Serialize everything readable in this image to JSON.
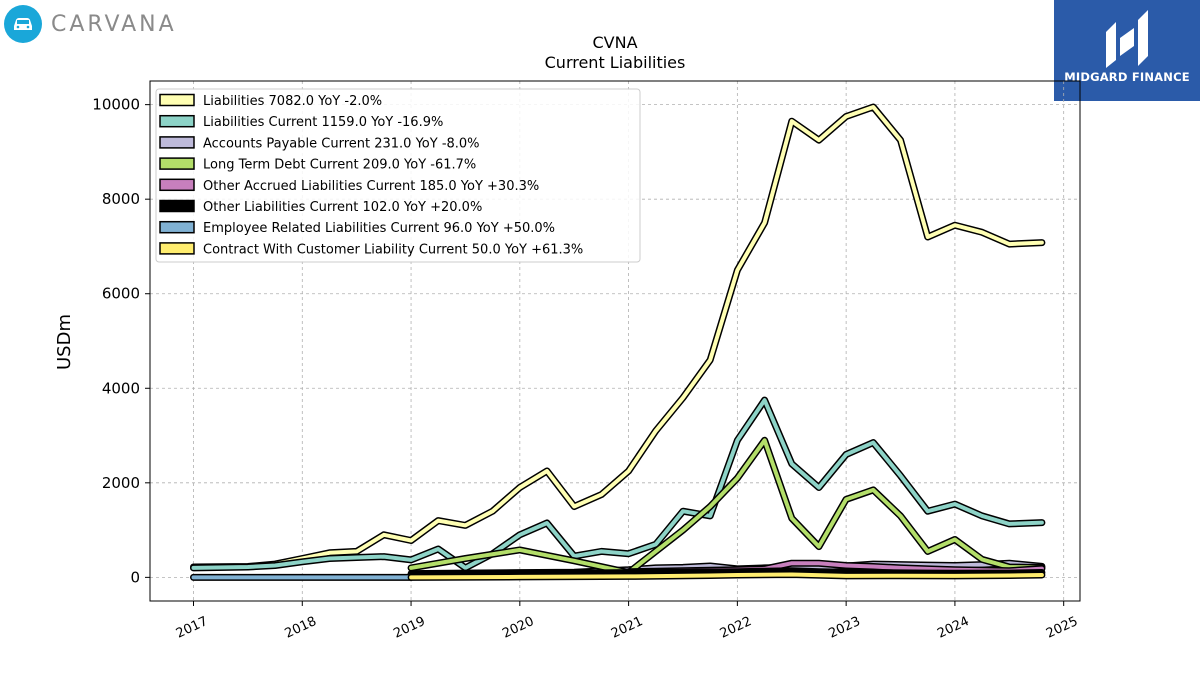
{
  "brand": {
    "name": "CARVANA",
    "icon": "car-icon",
    "color": "#1aa7d9"
  },
  "sponsor": {
    "name": "MIDGARD FINANCE",
    "icon": "midgard-logo-icon",
    "background": "#2b5ba9"
  },
  "chart_data": {
    "type": "line",
    "title": "CVNA",
    "subtitle": "Current  Liabilities",
    "xlabel": "",
    "ylabel": "USDm",
    "xlim": [
      2016.6,
      2025.15
    ],
    "ylim": [
      -500,
      10500
    ],
    "yticks": [
      0,
      2000,
      4000,
      6000,
      8000,
      10000
    ],
    "xticks": [
      "2017",
      "2018",
      "2019",
      "2020",
      "2021",
      "2022",
      "2023",
      "2024",
      "2025"
    ],
    "grid": true,
    "legend_position": "upper-left",
    "series": [
      {
        "name": "Liabilities  7082.0 YoY -2.0%",
        "color": "#ffffb3",
        "points": [
          [
            2017.0,
            220
          ],
          [
            2017.5,
            230
          ],
          [
            2017.75,
            280
          ],
          [
            2018.0,
            400
          ],
          [
            2018.25,
            520
          ],
          [
            2018.5,
            550
          ],
          [
            2018.75,
            900
          ],
          [
            2019.0,
            780
          ],
          [
            2019.25,
            1200
          ],
          [
            2019.5,
            1100
          ],
          [
            2019.75,
            1400
          ],
          [
            2020.0,
            1900
          ],
          [
            2020.25,
            2250
          ],
          [
            2020.5,
            1500
          ],
          [
            2020.75,
            1750
          ],
          [
            2021.0,
            2250
          ],
          [
            2021.25,
            3100
          ],
          [
            2021.5,
            3800
          ],
          [
            2021.75,
            4600
          ],
          [
            2022.0,
            6500
          ],
          [
            2022.25,
            7500
          ],
          [
            2022.5,
            9650
          ],
          [
            2022.75,
            9250
          ],
          [
            2023.0,
            9750
          ],
          [
            2023.25,
            9950
          ],
          [
            2023.5,
            9250
          ],
          [
            2023.75,
            7200
          ],
          [
            2024.0,
            7450
          ],
          [
            2024.25,
            7300
          ],
          [
            2024.5,
            7050
          ],
          [
            2024.8,
            7082
          ]
        ]
      },
      {
        "name": "Liabilities Current  1159.0 YoY -16.9%",
        "color": "#8dd3c7",
        "points": [
          [
            2017.0,
            200
          ],
          [
            2017.5,
            220
          ],
          [
            2017.75,
            250
          ],
          [
            2018.0,
            330
          ],
          [
            2018.25,
            400
          ],
          [
            2018.5,
            420
          ],
          [
            2018.75,
            440
          ],
          [
            2019.0,
            370
          ],
          [
            2019.25,
            600
          ],
          [
            2019.5,
            200
          ],
          [
            2019.75,
            500
          ],
          [
            2020.0,
            900
          ],
          [
            2020.25,
            1150
          ],
          [
            2020.5,
            450
          ],
          [
            2020.75,
            550
          ],
          [
            2021.0,
            500
          ],
          [
            2021.25,
            700
          ],
          [
            2021.5,
            1400
          ],
          [
            2021.75,
            1300
          ],
          [
            2022.0,
            2900
          ],
          [
            2022.25,
            3750
          ],
          [
            2022.5,
            2400
          ],
          [
            2022.75,
            1900
          ],
          [
            2023.0,
            2600
          ],
          [
            2023.25,
            2850
          ],
          [
            2023.5,
            2150
          ],
          [
            2023.75,
            1400
          ],
          [
            2024.0,
            1550
          ],
          [
            2024.25,
            1300
          ],
          [
            2024.5,
            1130
          ],
          [
            2024.8,
            1159
          ]
        ]
      },
      {
        "name": "Accounts Payable Current  231.0 YoY -8.0%",
        "color": "#bebada",
        "points": [
          [
            2019.0,
            80
          ],
          [
            2019.5,
            90
          ],
          [
            2020.0,
            100
          ],
          [
            2020.5,
            110
          ],
          [
            2021.0,
            160
          ],
          [
            2021.25,
            200
          ],
          [
            2021.5,
            210
          ],
          [
            2021.75,
            240
          ],
          [
            2022.0,
            180
          ],
          [
            2022.25,
            200
          ],
          [
            2022.5,
            210
          ],
          [
            2022.75,
            220
          ],
          [
            2023.0,
            240
          ],
          [
            2023.25,
            280
          ],
          [
            2023.5,
            270
          ],
          [
            2023.75,
            260
          ],
          [
            2024.0,
            250
          ],
          [
            2024.25,
            270
          ],
          [
            2024.5,
            300
          ],
          [
            2024.8,
            231
          ]
        ]
      },
      {
        "name": "Long Term Debt Current  209.0 YoY -61.7%",
        "color": "#b3de69",
        "points": [
          [
            2019.0,
            200
          ],
          [
            2019.5,
            400
          ],
          [
            2020.0,
            580
          ],
          [
            2020.5,
            350
          ],
          [
            2021.0,
            100
          ],
          [
            2021.5,
            1000
          ],
          [
            2021.75,
            1500
          ],
          [
            2022.0,
            2100
          ],
          [
            2022.25,
            2900
          ],
          [
            2022.5,
            1250
          ],
          [
            2022.75,
            650
          ],
          [
            2023.0,
            1650
          ],
          [
            2023.25,
            1850
          ],
          [
            2023.5,
            1300
          ],
          [
            2023.75,
            550
          ],
          [
            2024.0,
            800
          ],
          [
            2024.25,
            380
          ],
          [
            2024.5,
            220
          ],
          [
            2024.8,
            209
          ]
        ]
      },
      {
        "name": "Other Accrued Liabilities Current  185.0 YoY +30.3%",
        "color": "#c77fbd",
        "points": [
          [
            2021.0,
            120
          ],
          [
            2021.5,
            140
          ],
          [
            2022.0,
            160
          ],
          [
            2022.25,
            180
          ],
          [
            2022.5,
            300
          ],
          [
            2022.75,
            300
          ],
          [
            2023.0,
            250
          ],
          [
            2023.25,
            230
          ],
          [
            2023.5,
            200
          ],
          [
            2023.75,
            180
          ],
          [
            2024.0,
            160
          ],
          [
            2024.25,
            150
          ],
          [
            2024.5,
            140
          ],
          [
            2024.8,
            185
          ]
        ]
      },
      {
        "name": "Other Liabilities Current  102.0 YoY +20.0%",
        "color": "#000000",
        "points": [
          [
            2019.0,
            60
          ],
          [
            2019.5,
            70
          ],
          [
            2020.0,
            80
          ],
          [
            2020.5,
            90
          ],
          [
            2021.0,
            100
          ],
          [
            2021.5,
            110
          ],
          [
            2022.0,
            120
          ],
          [
            2022.25,
            130
          ],
          [
            2022.5,
            140
          ],
          [
            2022.75,
            120
          ],
          [
            2023.0,
            110
          ],
          [
            2023.25,
            100
          ],
          [
            2023.5,
            95
          ],
          [
            2023.75,
            90
          ],
          [
            2024.0,
            85
          ],
          [
            2024.5,
            90
          ],
          [
            2024.8,
            102
          ]
        ]
      },
      {
        "name": "Employee Related Liabilities Current  96.0 YoY +50.0%",
        "color": "#80b1d3",
        "points": [
          [
            2017.0,
            0
          ],
          [
            2019.0,
            0
          ]
        ]
      },
      {
        "name": "Contract With Customer Liability Current  50.0 YoY +61.3%",
        "color": "#ffed6f",
        "points": [
          [
            2019.0,
            0
          ],
          [
            2020.0,
            10
          ],
          [
            2021.0,
            20
          ],
          [
            2021.75,
            40
          ],
          [
            2022.0,
            50
          ],
          [
            2022.5,
            60
          ],
          [
            2023.0,
            30
          ],
          [
            2023.5,
            35
          ],
          [
            2024.0,
            30
          ],
          [
            2024.5,
            40
          ],
          [
            2024.8,
            50
          ]
        ]
      }
    ]
  }
}
